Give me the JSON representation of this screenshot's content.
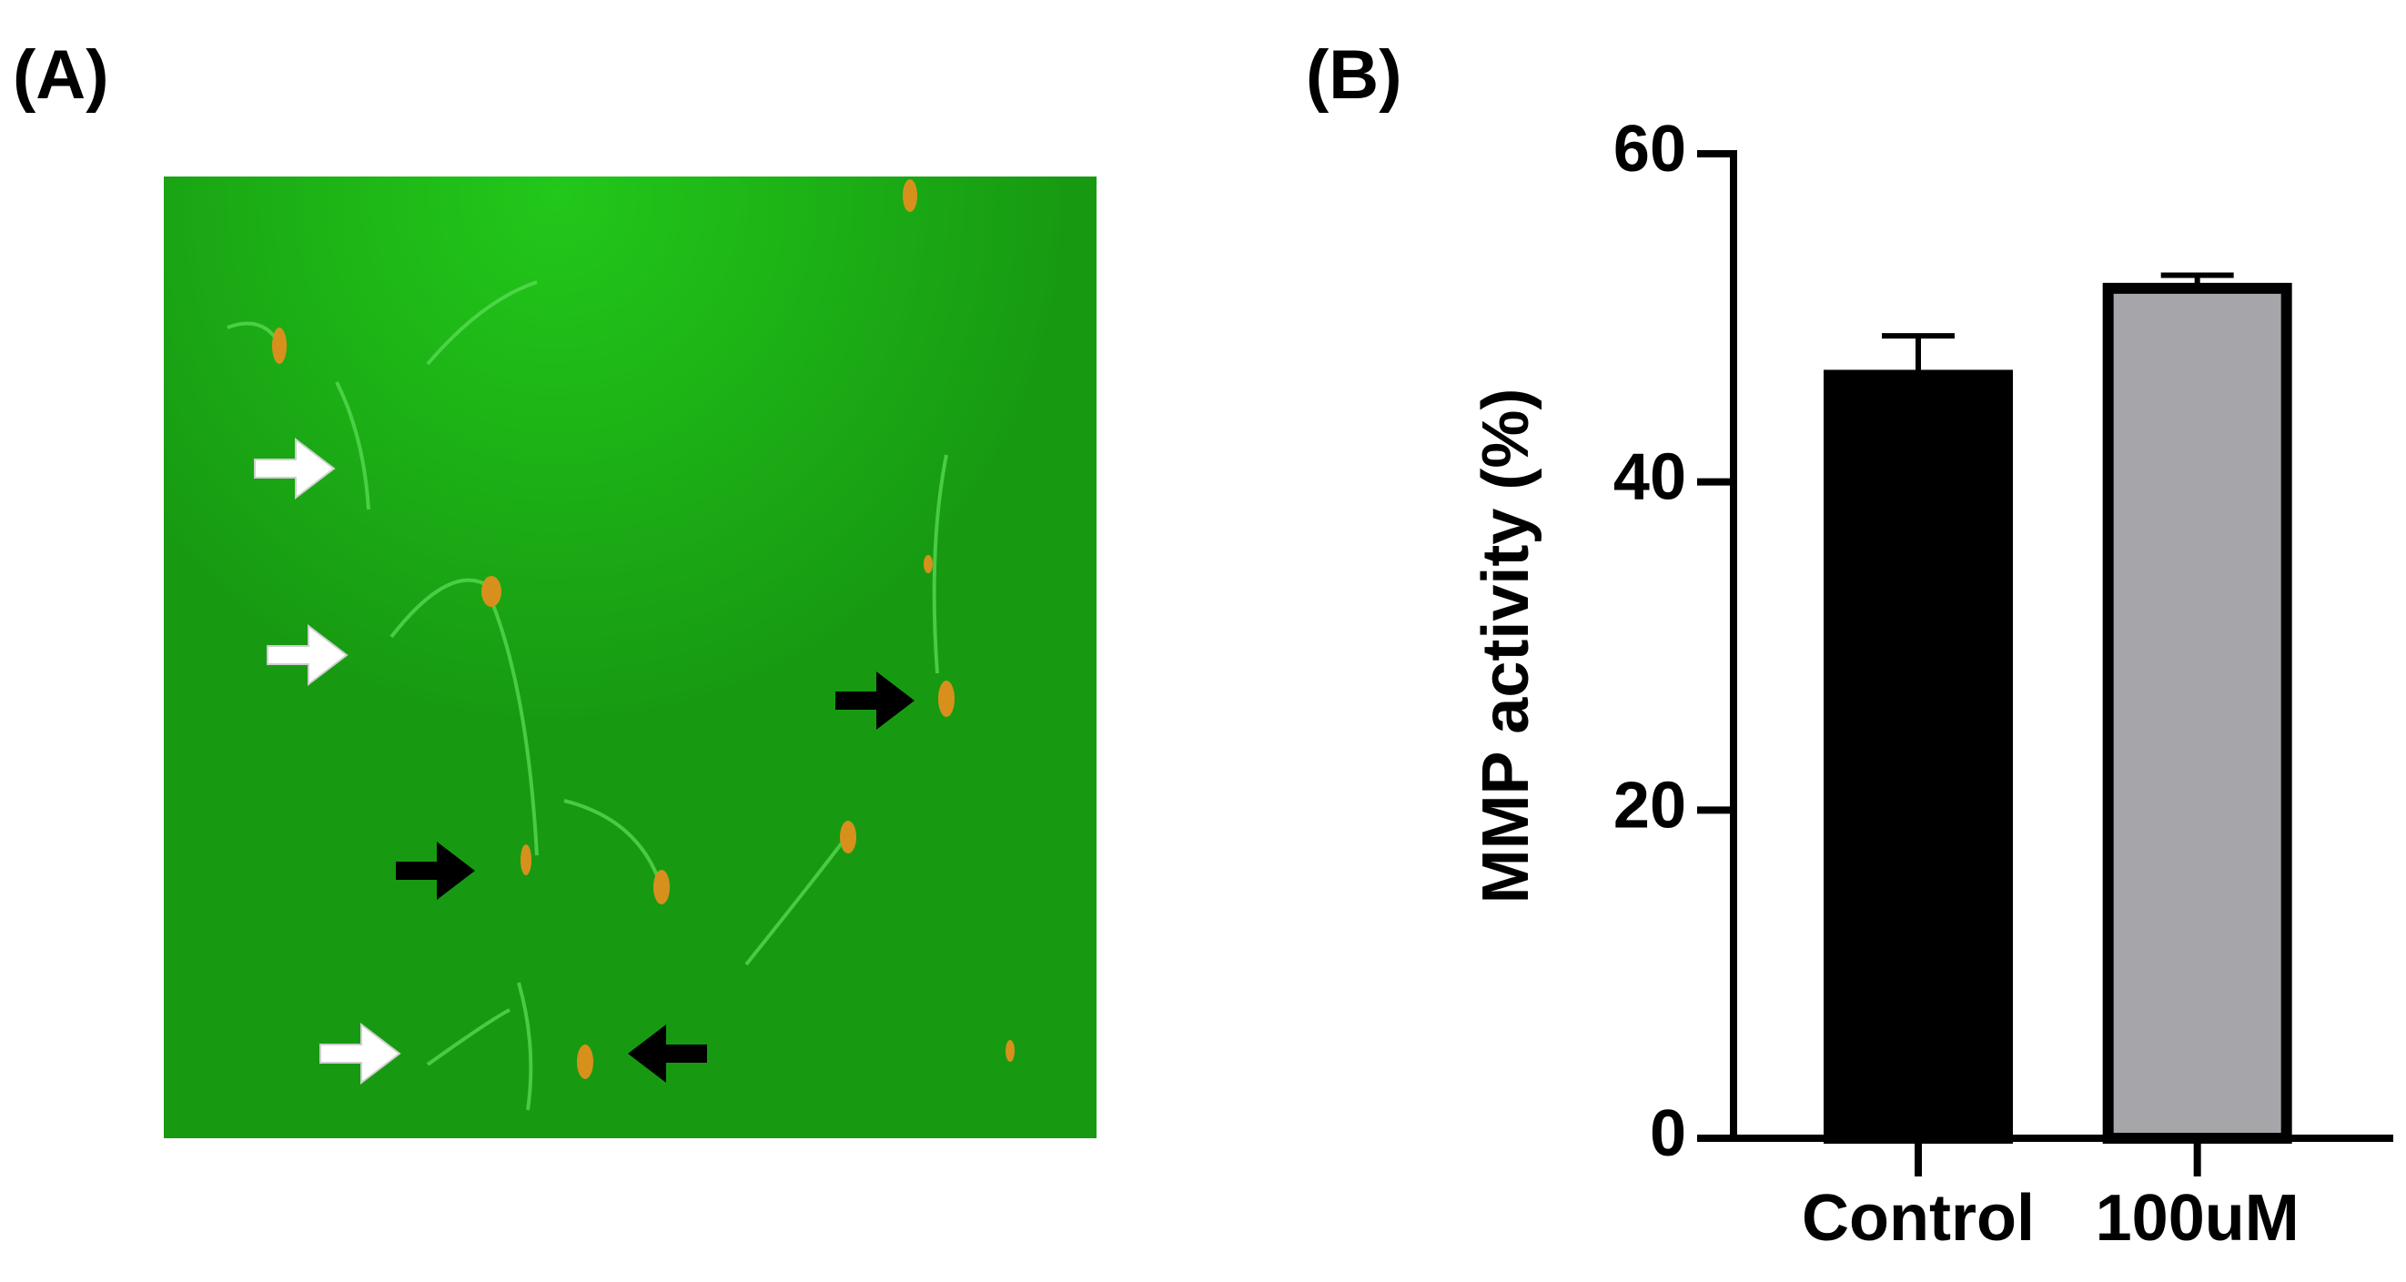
{
  "panel_labels": [
    "(A)",
    "(B)"
  ],
  "chart_data": {
    "type": "bar",
    "ylabel": "MMP activity (%)",
    "categories": [
      "Control",
      "100uM"
    ],
    "values": [
      46.5,
      51.8
    ],
    "error": [
      2.4,
      0.8
    ],
    "colors": [
      "#000000",
      "#a6a6aa"
    ],
    "edge_color": "#000000",
    "ylim": [
      0,
      60
    ],
    "yticks": [
      0,
      20,
      40,
      60
    ],
    "grid": false
  }
}
